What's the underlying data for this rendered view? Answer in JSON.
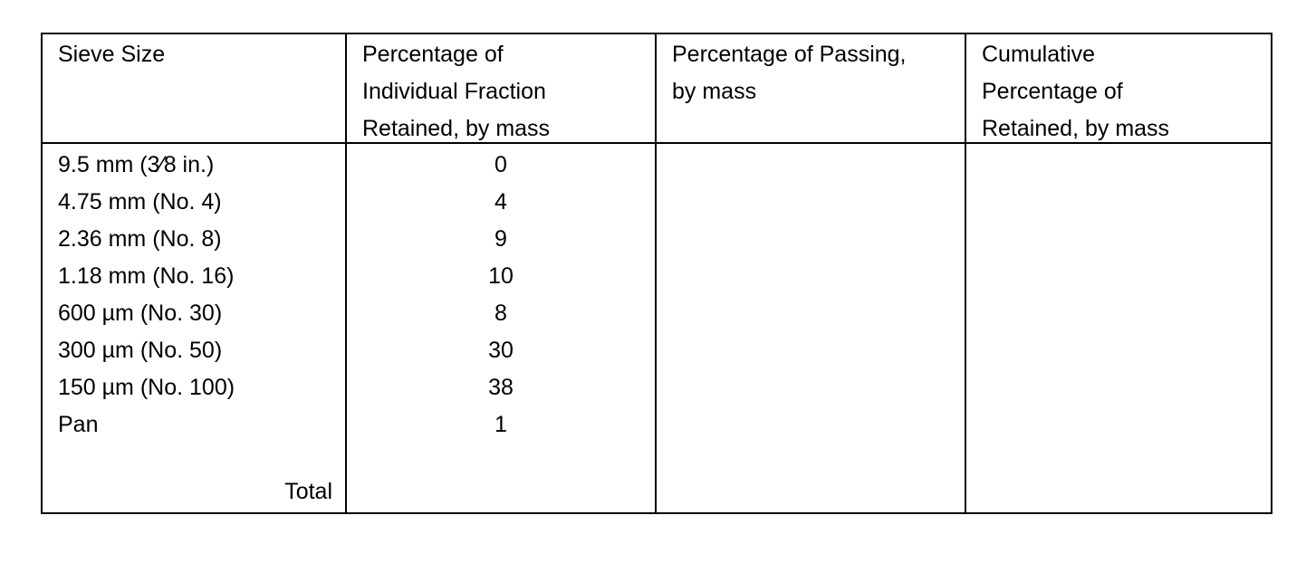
{
  "table": {
    "headers": [
      [
        "Sieve Size"
      ],
      [
        "Percentage of",
        "Individual Fraction",
        "Retained, by mass"
      ],
      [
        "Percentage of Passing,",
        "by mass"
      ],
      [
        "Cumulative",
        "Percentage of",
        "Retained, by mass"
      ]
    ],
    "sieve_sizes": [
      "9.5 mm (3⁄8 in.)",
      "4.75 mm (No. 4)",
      "2.36 mm (No. 8)",
      "1.18 mm (No. 16)",
      "600 µm (No. 30)",
      "300 µm (No. 50)",
      "150 µm (No. 100)",
      "Pan"
    ],
    "retained": [
      0,
      4,
      9,
      10,
      8,
      30,
      38,
      1
    ],
    "total_label": "Total"
  }
}
